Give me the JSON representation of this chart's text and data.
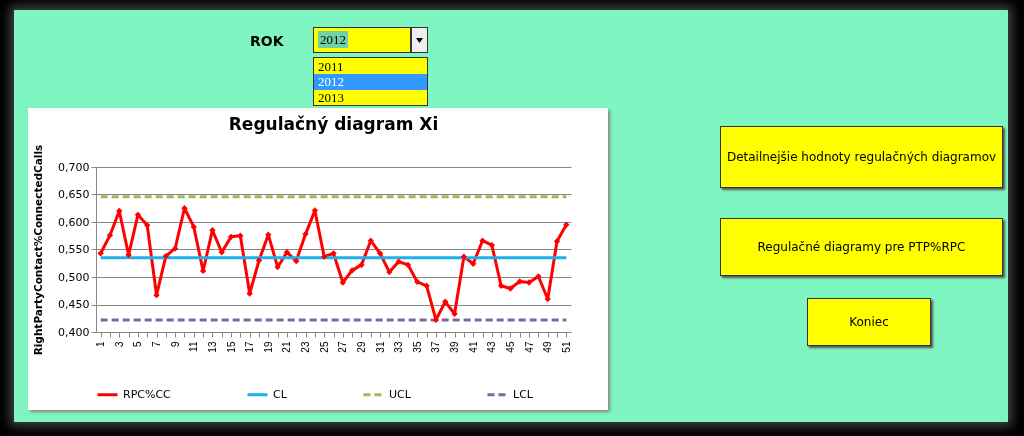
{
  "chart_data": [
    {
      "type": "line",
      "title": "Regulačný diagram Xi",
      "ylabel": "RightPartyContact%ConnectedCalls",
      "categories": [
        "1",
        null,
        "3",
        null,
        "5",
        null,
        "7",
        null,
        "9",
        null,
        "11",
        null,
        "13",
        null,
        "15",
        null,
        "17",
        null,
        "19",
        null,
        "21",
        null,
        "23",
        null,
        "25",
        null,
        "27",
        null,
        "29",
        null,
        "31",
        null,
        "33",
        null,
        "35",
        null,
        "37",
        null,
        "39",
        null,
        "41",
        null,
        "43",
        null,
        "45",
        null,
        "47",
        null,
        "49",
        null,
        "51"
      ],
      "series": [
        {
          "name": "RPC%CC",
          "color": "#ff0000",
          "marker": "diamond",
          "line_style": "solid",
          "values": [
            0.543,
            0.576,
            0.62,
            0.54,
            0.613,
            0.594,
            0.467,
            0.538,
            0.552,
            0.625,
            0.591,
            0.511,
            0.585,
            0.545,
            0.573,
            0.575,
            0.47,
            0.53,
            0.577,
            0.518,
            0.545,
            0.529,
            0.578,
            0.621,
            0.537,
            0.543,
            0.49,
            0.512,
            0.522,
            0.566,
            0.543,
            0.509,
            0.528,
            0.522,
            0.491,
            0.484,
            0.422,
            0.455,
            0.433,
            0.537,
            0.524,
            0.566,
            0.558,
            0.484,
            0.479,
            0.492,
            0.49,
            0.501,
            0.46,
            0.565,
            0.595
          ]
        },
        {
          "name": "CL",
          "color": "#1fb0e8",
          "line_style": "solid",
          "values": [
            0.535,
            0.535,
            0.535,
            0.535,
            0.535,
            0.535,
            0.535,
            0.535,
            0.535,
            0.535,
            0.535,
            0.535,
            0.535,
            0.535,
            0.535,
            0.535,
            0.535,
            0.535,
            0.535,
            0.535,
            0.535,
            0.535,
            0.535,
            0.535,
            0.535,
            0.535,
            0.535,
            0.535,
            0.535,
            0.535,
            0.535,
            0.535,
            0.535,
            0.535,
            0.535,
            0.535,
            0.535,
            0.535,
            0.535,
            0.535,
            0.535,
            0.535,
            0.535,
            0.535,
            0.535,
            0.535,
            0.535,
            0.535,
            0.535,
            0.535,
            0.535
          ]
        },
        {
          "name": "UCL",
          "color": "#9bbb59",
          "line_style": "dashed",
          "values": [
            0.646,
            0.646,
            0.646,
            0.646,
            0.646,
            0.646,
            0.646,
            0.646,
            0.646,
            0.646,
            0.646,
            0.646,
            0.646,
            0.646,
            0.646,
            0.646,
            0.646,
            0.646,
            0.646,
            0.646,
            0.646,
            0.646,
            0.646,
            0.646,
            0.646,
            0.646,
            0.646,
            0.646,
            0.646,
            0.646,
            0.646,
            0.646,
            0.646,
            0.646,
            0.646,
            0.646,
            0.646,
            0.646,
            0.646,
            0.646,
            0.646,
            0.646,
            0.646,
            0.646,
            0.646,
            0.646,
            0.646,
            0.646,
            0.646,
            0.646,
            0.646
          ]
        },
        {
          "name": "LCL",
          "color": "#8064a2",
          "line_style": "dashed",
          "values": [
            0.422,
            0.422,
            0.422,
            0.422,
            0.422,
            0.422,
            0.422,
            0.422,
            0.422,
            0.422,
            0.422,
            0.422,
            0.422,
            0.422,
            0.422,
            0.422,
            0.422,
            0.422,
            0.422,
            0.422,
            0.422,
            0.422,
            0.422,
            0.422,
            0.422,
            0.422,
            0.422,
            0.422,
            0.422,
            0.422,
            0.422,
            0.422,
            0.422,
            0.422,
            0.422,
            0.422,
            0.422,
            0.422,
            0.422,
            0.422,
            0.422,
            0.422,
            0.422,
            0.422,
            0.422,
            0.422,
            0.422,
            0.422,
            0.422,
            0.422,
            0.422
          ]
        }
      ],
      "ylim": [
        0.4,
        0.7
      ],
      "yticks": [
        {
          "value": 0.4,
          "label": "0,400"
        },
        {
          "value": 0.45,
          "label": "0,450"
        },
        {
          "value": 0.5,
          "label": "0,500"
        },
        {
          "value": 0.55,
          "label": "0,550"
        },
        {
          "value": 0.6,
          "label": "0,600"
        },
        {
          "value": 0.65,
          "label": "0,650"
        },
        {
          "value": 0.7,
          "label": "0,700"
        }
      ],
      "grid": "y",
      "legend": "bottom"
    },
    {
      "type": "other",
      "annotations": [
        "ROK",
        "2012",
        "2011",
        "2012",
        "2013",
        "Detailnejšie hodnoty regulačných diagramov",
        "Regulačné diagramy pre PTP%RPC",
        "Koniec"
      ]
    }
  ]
}
